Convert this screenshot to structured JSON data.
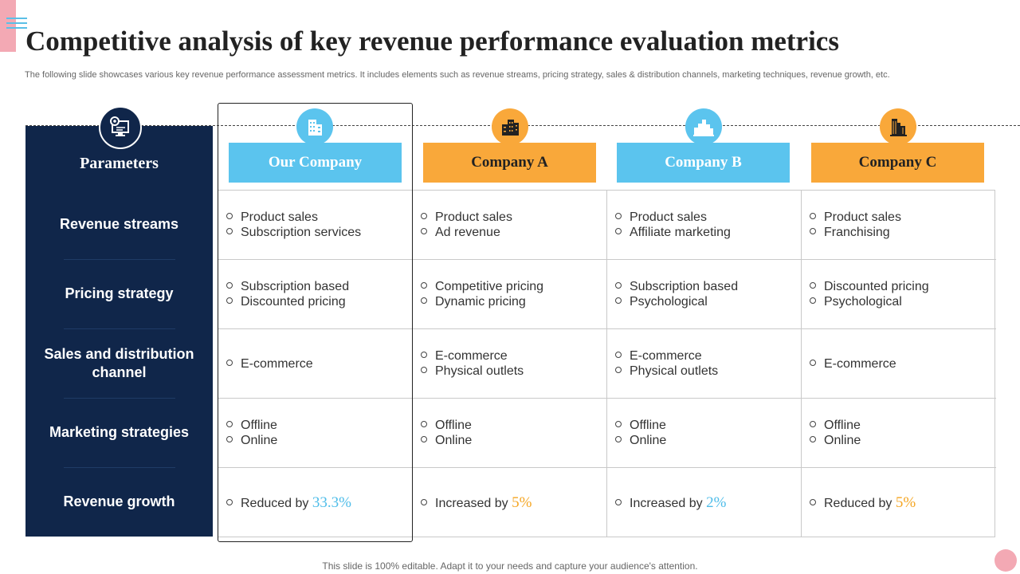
{
  "title": "Competitive analysis of key revenue performance evaluation metrics",
  "subtitle": "The following slide showcases various key revenue performance assessment metrics. It includes elements such as revenue streams, pricing strategy, sales & distribution channels, marketing techniques, revenue growth, etc.",
  "parameters": {
    "header": "Parameters",
    "icon": "monitor-gear-icon",
    "rows": [
      "Revenue streams",
      "Pricing strategy",
      "Sales and distribution channel",
      "Marketing strategies",
      "Revenue growth"
    ]
  },
  "companies": [
    {
      "name": "Our Company",
      "icon": "buildings-icon",
      "color": "#5bc4ee"
    },
    {
      "name": "Company A",
      "icon": "office-buildings-icon",
      "color": "#f9a83a"
    },
    {
      "name": "Company B",
      "icon": "city-skyline-icon",
      "color": "#5bc4ee"
    },
    {
      "name": "Company C",
      "icon": "tower-buildings-icon",
      "color": "#f9a83a"
    }
  ],
  "cells": [
    [
      [
        "Product sales",
        "Subscription services"
      ],
      [
        "Product sales",
        "Ad revenue"
      ],
      [
        "Product sales",
        "Affiliate marketing"
      ],
      [
        "Product sales",
        "Franchising"
      ]
    ],
    [
      [
        "Subscription based",
        "Discounted pricing"
      ],
      [
        "Competitive pricing",
        "Dynamic pricing"
      ],
      [
        "Subscription based",
        "Psychological"
      ],
      [
        "Discounted pricing",
        "Psychological"
      ]
    ],
    [
      [
        "E-commerce"
      ],
      [
        "E-commerce",
        "Physical outlets"
      ],
      [
        "E-commerce",
        "Physical outlets"
      ],
      [
        "E-commerce"
      ]
    ],
    [
      [
        "Offline",
        "Online"
      ],
      [
        "Offline",
        "Online"
      ],
      [
        "Offline",
        "Online"
      ],
      [
        "Offline",
        "Online"
      ]
    ]
  ],
  "growth": [
    {
      "text": "Reduced by",
      "value": "33.3%",
      "color": "#4fbde9"
    },
    {
      "text": "Increased by",
      "value": "5%",
      "color": "#f5a623"
    },
    {
      "text": "Increased by",
      "value": "2%",
      "color": "#4fbde9"
    },
    {
      "text": "Reduced by",
      "value": "5%",
      "color": "#f5a623"
    }
  ],
  "footer": "This slide is 100% editable. Adapt it to your needs and capture your audience's attention."
}
